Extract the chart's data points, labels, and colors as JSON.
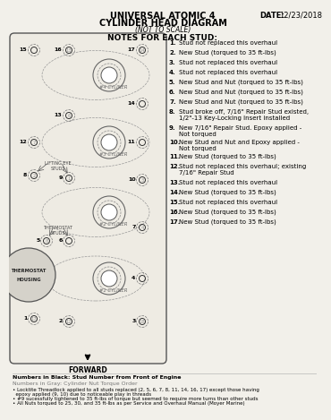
{
  "title1": "UNIVERSAL ATOMIC 4",
  "title2": "CYLINDER HEAD DIAGRAM",
  "title3": "(NOT TO SCALE)",
  "date_label": "DATE:",
  "date_value": "12/23/2018",
  "notes_header": "NOTES FOR EACH STUD:",
  "notes": [
    [
      "1.",
      "Stud not replaced this overhaul"
    ],
    [
      "2.",
      "New Stud (torqued to 35 ft-lbs)"
    ],
    [
      "3.",
      "Stud not replaced this overhaul"
    ],
    [
      "4.",
      "Stud not replaced this overhaul"
    ],
    [
      "5.",
      "New Stud and Nut (torqued to 35 ft-lbs)"
    ],
    [
      "6.",
      "New Stud and Nut (torqued to 35 ft-lbs)"
    ],
    [
      "7.",
      "New Stud and Nut (torqued to 35 ft-lbs)"
    ],
    [
      "8.",
      "Stud broke off, 7/16\" Repair Stud existed,\n1/2\"-13 Key-Locking Insert installed"
    ],
    [
      "9.",
      "New 7/16\" Repair Stud. Epoxy applied -\nNot torqued"
    ],
    [
      "10.",
      "New Stud and Nut and Epoxy applied -\nNot torqued"
    ],
    [
      "11.",
      "New Stud (torqued to 35 ft-lbs)"
    ],
    [
      "12.",
      "Stud not replaced this overhaul; existing\n7/16\" Repair Stud"
    ],
    [
      "13.",
      "Stud not replaced this overhaul"
    ],
    [
      "14.",
      "New Stud (torqued to 35 ft-lbs)"
    ],
    [
      "15.",
      "Stud not replaced this overhaul"
    ],
    [
      "16.",
      "New Stud (torqued to 35 ft-lbs)"
    ],
    [
      "17.",
      "New Stud (torqued to 35 ft-lbs)"
    ]
  ],
  "legend1": "Numbers in Black: Stud Number from Front of Engine",
  "legend2": "Numbers in Gray: Cylinder Nut Torque Order",
  "footnote1a": "• Locktite Threadlock applied to all studs replaced (2, 5, 6, 7, 8, 11, 14, 16, 17) except those having",
  "footnote1b": "  epoxy applied (9, 10) due to noticeable play in threads",
  "footnote2": "• #9 sucessfully tightened to 35 ft-lbs of torque but seemed to require more turns than other studs",
  "footnote3": "• All Nuts torqued to 25, 30, and 35 ft-lbs as per Service and Overhaul Manual (Moyer Marine)",
  "forward_label": "FORWARD",
  "bg_color": "#f2f0ea",
  "diagram_bg": "#eeebe3"
}
